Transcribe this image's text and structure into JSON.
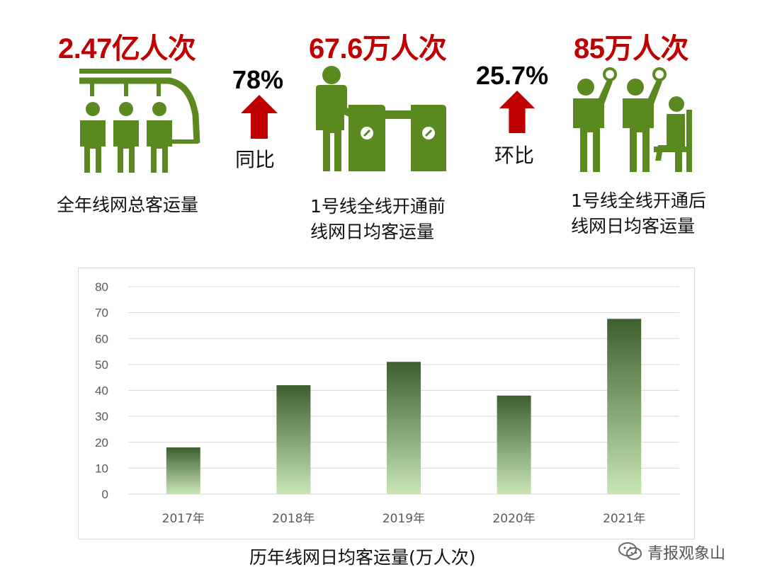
{
  "stats": [
    {
      "value": "2.47亿人次",
      "label_lines": [
        "全年线网总客运量"
      ]
    },
    {
      "value": "67.6万人次",
      "label_lines": [
        "1号线全线开通前",
        "线网日均客运量"
      ]
    },
    {
      "value": "85万人次",
      "label_lines": [
        "1号线全线开通后",
        "线网日均客运量"
      ]
    }
  ],
  "changes": [
    {
      "value": "78%",
      "label": "同比",
      "direction": "up"
    },
    {
      "value": "25.7%",
      "label": "环比",
      "direction": "up"
    }
  ],
  "colors": {
    "accent_red": "#c00000",
    "icon_green": "#5a8a1f",
    "bar_top": "#3d5f2e",
    "bar_bottom": "#c8e6b5"
  },
  "chart_data": {
    "type": "bar",
    "categories": [
      "2017年",
      "2018年",
      "2019年",
      "2020年",
      "2021年"
    ],
    "values": [
      18,
      42,
      51,
      38,
      67.6
    ],
    "title": "",
    "xlabel": "",
    "ylabel": "",
    "ylim": [
      0,
      80
    ],
    "yticks": [
      "0",
      "10",
      "20",
      "30",
      "40",
      "50",
      "60",
      "70",
      "80"
    ],
    "grid": true
  },
  "chart_caption": "历年线网日均客运量(万人次)",
  "watermark": {
    "text": "青报观象山",
    "icon": "wechat-icon"
  }
}
